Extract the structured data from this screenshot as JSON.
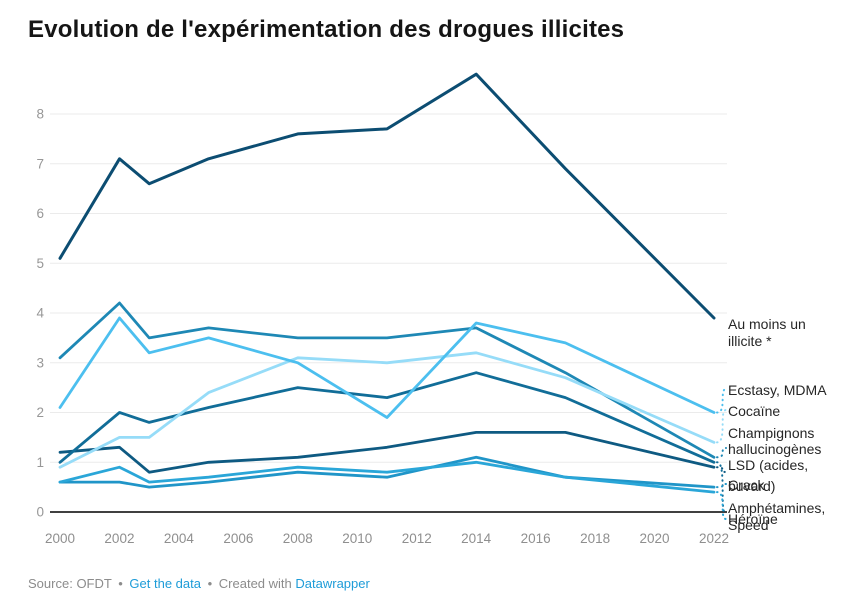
{
  "title": "Evolution de l'expérimentation des drogues illicites",
  "footer": {
    "source_label": "Source:",
    "source_value": "OFDT",
    "separator": "•",
    "get_data_link": "Get the data",
    "created_with": "Created with",
    "datawrapper_link": "Datawrapper"
  },
  "chart_data": {
    "type": "line",
    "x": [
      2000,
      2002,
      2003,
      2005,
      2008,
      2011,
      2014,
      2017,
      2022
    ],
    "x_axis": {
      "tick_labels": [
        "2000",
        "2002",
        "2004",
        "2006",
        "2008",
        "2010",
        "2012",
        "2014",
        "2016",
        "2018",
        "2020",
        "2022"
      ],
      "range": [
        2000,
        2022
      ]
    },
    "y_axis": {
      "tick_labels": [
        "0",
        "1",
        "2",
        "3",
        "4",
        "5",
        "6",
        "7",
        "8"
      ],
      "range": [
        0,
        9
      ],
      "grid": true
    },
    "grid_color": "#ebebeb",
    "axis_text_color": "#979797",
    "legend_position": "right-direct-labels",
    "series": [
      {
        "key": "au_moins",
        "name": "Au moins un illicite *",
        "label_lines": [
          "Au moins un",
          "illicite *"
        ],
        "color": "#0c4d72",
        "values": [
          5.1,
          7.1,
          6.6,
          7.1,
          7.6,
          7.7,
          8.8,
          6.9,
          3.9
        ],
        "end_value": 3.9
      },
      {
        "key": "ecstasy",
        "name": "Ecstasy, MDMA",
        "label_lines": [
          "Ecstasy, MDMA"
        ],
        "color": "#4cbfef",
        "values": [
          2.1,
          3.9,
          3.2,
          3.5,
          3.0,
          1.9,
          3.8,
          3.4,
          2.0
        ],
        "end_value": 2.0
      },
      {
        "key": "cocaine",
        "name": "Cocaïne",
        "label_lines": [
          "Cocaïne"
        ],
        "color": "#96dcf8",
        "values": [
          0.9,
          1.5,
          1.5,
          2.4,
          3.1,
          3.0,
          3.2,
          2.7,
          1.4
        ],
        "end_value": 1.4
      },
      {
        "key": "champignons",
        "name": "Champignons hallucinogènes",
        "label_lines": [
          "Champignons",
          "hallucinogènes"
        ],
        "color": "#1e88b5",
        "values": [
          3.1,
          4.2,
          3.5,
          3.7,
          3.5,
          3.5,
          3.7,
          2.8,
          1.1
        ],
        "end_value": 1.1
      },
      {
        "key": "lsd",
        "name": "LSD (acides, buvard)",
        "label_lines": [
          "LSD (acides,",
          "buvard)"
        ],
        "color": "#0e5a82",
        "values": [
          1.2,
          1.3,
          0.8,
          1.0,
          1.1,
          1.3,
          1.6,
          1.6,
          0.9
        ],
        "end_value": 0.9
      },
      {
        "key": "crack",
        "name": "Crack",
        "label_lines": [
          "Crack"
        ],
        "color": "#2095c8",
        "values": [
          0.6,
          0.6,
          0.5,
          0.6,
          0.8,
          0.7,
          1.1,
          0.7,
          0.5
        ],
        "end_value": 0.5
      },
      {
        "key": "amphetamines",
        "name": "Amphétamines, Speed",
        "label_lines": [
          "Amphétamines,",
          "Speed"
        ],
        "color": "#116d98",
        "values": [
          1.0,
          2.0,
          1.8,
          2.1,
          2.5,
          2.3,
          2.8,
          2.3,
          1.0
        ],
        "end_value": 1.0
      },
      {
        "key": "heroine",
        "name": "Héroïne",
        "label_lines": [
          "Héroïne"
        ],
        "color": "#2aa6d8",
        "values": [
          0.6,
          0.9,
          0.6,
          0.7,
          0.9,
          0.8,
          1.0,
          0.7,
          0.4
        ],
        "end_value": 0.4
      }
    ]
  }
}
